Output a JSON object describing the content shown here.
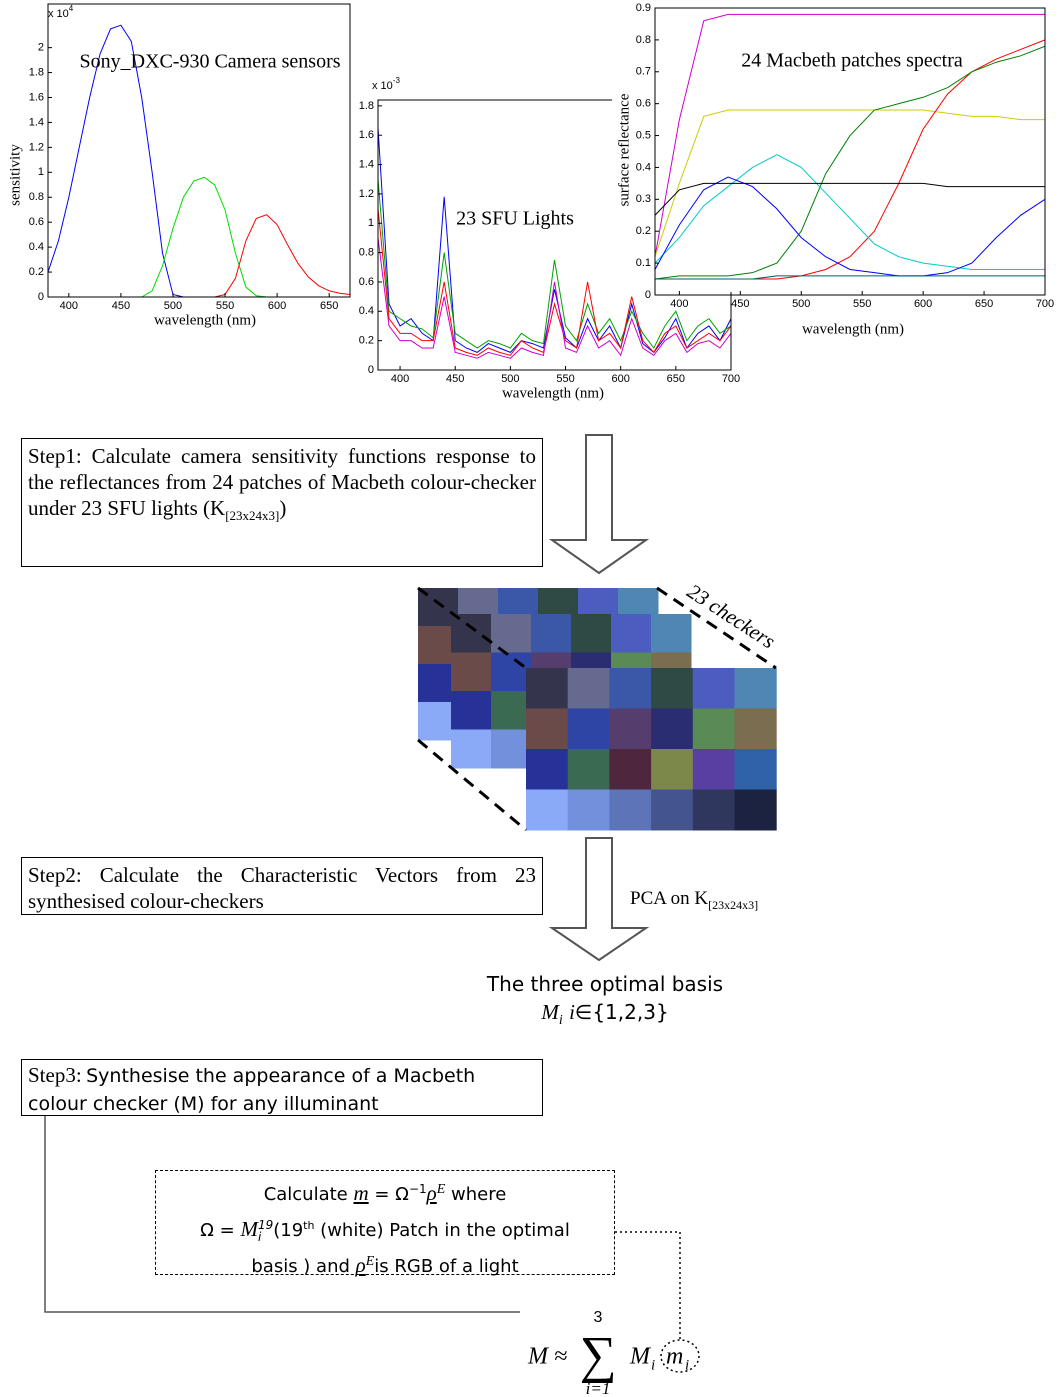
{
  "chart_data": [
    {
      "type": "line",
      "title": "Sony_DXC-930 Camera sensors",
      "y_scale_label": {
        "base": "x 10",
        "power": "4"
      },
      "xlabel": "wavelength (nm)",
      "ylabel": "sensitivity",
      "x": [
        380,
        390,
        400,
        410,
        420,
        430,
        440,
        450,
        460,
        470,
        480,
        490,
        500,
        510,
        520,
        530,
        540,
        550,
        560,
        570,
        580,
        590,
        600,
        610,
        620,
        630,
        640,
        650,
        660,
        670
      ],
      "series": [
        {
          "color": "#0000ff",
          "values": [
            0.2,
            0.45,
            0.8,
            1.2,
            1.6,
            1.95,
            2.15,
            2.18,
            2.05,
            1.6,
            1.0,
            0.35,
            0.02,
            0,
            0,
            0,
            0,
            0,
            0,
            0,
            0,
            0,
            0,
            0,
            0,
            0,
            0,
            0,
            0,
            0
          ]
        },
        {
          "color": "#00dd00",
          "values": [
            0,
            0,
            0,
            0,
            0,
            0,
            0,
            0,
            0,
            0,
            0.05,
            0.25,
            0.55,
            0.8,
            0.93,
            0.96,
            0.9,
            0.7,
            0.35,
            0.08,
            0.01,
            0,
            0,
            0,
            0,
            0,
            0,
            0,
            0,
            0
          ]
        },
        {
          "color": "#ff0000",
          "values": [
            0,
            0,
            0,
            0,
            0,
            0,
            0,
            0,
            0,
            0,
            0,
            0,
            0,
            0,
            0,
            0,
            0,
            0.02,
            0.15,
            0.45,
            0.63,
            0.66,
            0.58,
            0.42,
            0.27,
            0.16,
            0.09,
            0.05,
            0.03,
            0.02
          ]
        }
      ],
      "xlim": [
        380,
        670
      ],
      "ylim": [
        0,
        2.35
      ],
      "xticks": [
        400,
        450,
        500,
        550,
        600,
        650
      ],
      "yticks": [
        0,
        0.2,
        0.4,
        0.6,
        0.8,
        1,
        1.2,
        1.4,
        1.6,
        1.8,
        2
      ]
    },
    {
      "type": "line",
      "title": "23 SFU Lights",
      "y_scale_label": {
        "base": "x 10",
        "power": "-3"
      },
      "xlabel": "wavelength (nm)",
      "x": [
        380,
        390,
        400,
        410,
        420,
        430,
        440,
        450,
        460,
        470,
        480,
        490,
        500,
        510,
        520,
        530,
        540,
        550,
        560,
        570,
        580,
        590,
        600,
        610,
        620,
        630,
        640,
        650,
        660,
        670,
        680,
        690,
        700
      ],
      "series": [
        {
          "color": "#0000ff",
          "values": [
            1.65,
            0.45,
            0.3,
            0.35,
            0.25,
            0.2,
            1.18,
            0.2,
            0.15,
            0.12,
            0.18,
            0.15,
            0.12,
            0.2,
            0.18,
            0.15,
            0.55,
            0.22,
            0.15,
            0.35,
            0.2,
            0.3,
            0.15,
            0.45,
            0.18,
            0.12,
            0.22,
            0.35,
            0.15,
            0.25,
            0.3,
            0.2,
            0.35
          ]
        },
        {
          "color": "#00a000",
          "values": [
            1.3,
            0.4,
            0.35,
            0.3,
            0.28,
            0.22,
            0.8,
            0.25,
            0.2,
            0.15,
            0.2,
            0.18,
            0.15,
            0.25,
            0.2,
            0.18,
            0.75,
            0.3,
            0.2,
            0.45,
            0.25,
            0.35,
            0.2,
            0.4,
            0.25,
            0.15,
            0.3,
            0.4,
            0.2,
            0.3,
            0.35,
            0.25,
            0.3
          ]
        },
        {
          "color": "#ff0000",
          "values": [
            1.1,
            0.35,
            0.25,
            0.25,
            0.2,
            0.2,
            0.6,
            0.15,
            0.12,
            0.1,
            0.15,
            0.12,
            0.1,
            0.2,
            0.15,
            0.12,
            0.45,
            0.2,
            0.15,
            0.6,
            0.2,
            0.25,
            0.15,
            0.5,
            0.2,
            0.12,
            0.25,
            0.3,
            0.15,
            0.2,
            0.25,
            0.2,
            0.3
          ]
        },
        {
          "color": "#cc00cc",
          "values": [
            0.9,
            0.3,
            0.2,
            0.2,
            0.15,
            0.15,
            0.5,
            0.12,
            0.1,
            0.08,
            0.12,
            0.1,
            0.08,
            0.15,
            0.12,
            0.1,
            0.6,
            0.15,
            0.12,
            0.3,
            0.15,
            0.2,
            0.1,
            0.35,
            0.15,
            0.1,
            0.2,
            0.25,
            0.12,
            0.18,
            0.2,
            0.15,
            0.25
          ]
        }
      ],
      "xlim": [
        380,
        700
      ],
      "ylim": [
        0,
        1.84
      ],
      "xticks": [
        400,
        450,
        500,
        550,
        600,
        650,
        700
      ],
      "yticks": [
        0,
        0.2,
        0.4,
        0.6,
        0.8,
        1,
        1.2,
        1.4,
        1.6,
        1.8
      ]
    },
    {
      "type": "line",
      "title": "24 Macbeth patches spectra",
      "xlabel": "wavelength (nm)",
      "ylabel": "surface reflectance",
      "x": [
        380,
        400,
        420,
        440,
        460,
        480,
        500,
        520,
        540,
        560,
        580,
        600,
        620,
        640,
        660,
        680,
        700
      ],
      "series": [
        {
          "color": "#cc00cc",
          "values": [
            0.12,
            0.55,
            0.86,
            0.88,
            0.88,
            0.88,
            0.88,
            0.88,
            0.88,
            0.88,
            0.88,
            0.88,
            0.88,
            0.88,
            0.88,
            0.88,
            0.88
          ]
        },
        {
          "color": "#cccc00",
          "values": [
            0.12,
            0.35,
            0.56,
            0.58,
            0.58,
            0.58,
            0.58,
            0.58,
            0.58,
            0.58,
            0.58,
            0.58,
            0.57,
            0.56,
            0.56,
            0.55,
            0.55
          ]
        },
        {
          "color": "#ff0000",
          "values": [
            0.05,
            0.05,
            0.05,
            0.05,
            0.05,
            0.05,
            0.06,
            0.08,
            0.12,
            0.2,
            0.35,
            0.52,
            0.63,
            0.7,
            0.74,
            0.77,
            0.8
          ]
        },
        {
          "color": "#008000",
          "values": [
            0.05,
            0.06,
            0.06,
            0.06,
            0.07,
            0.1,
            0.2,
            0.38,
            0.5,
            0.58,
            0.6,
            0.62,
            0.65,
            0.7,
            0.73,
            0.75,
            0.78
          ]
        },
        {
          "color": "#00cccc",
          "values": [
            0.1,
            0.18,
            0.28,
            0.34,
            0.4,
            0.44,
            0.4,
            0.32,
            0.24,
            0.16,
            0.12,
            0.1,
            0.09,
            0.08,
            0.08,
            0.08,
            0.08
          ]
        },
        {
          "color": "#0000ff",
          "values": [
            0.08,
            0.22,
            0.33,
            0.37,
            0.34,
            0.27,
            0.18,
            0.12,
            0.08,
            0.07,
            0.06,
            0.06,
            0.07,
            0.1,
            0.18,
            0.25,
            0.3
          ]
        },
        {
          "color": "#000000",
          "values": [
            0.25,
            0.33,
            0.35,
            0.35,
            0.35,
            0.35,
            0.35,
            0.35,
            0.35,
            0.35,
            0.35,
            0.35,
            0.34,
            0.34,
            0.34,
            0.34,
            0.34
          ]
        },
        {
          "color": "#006060",
          "values": [
            0.05,
            0.05,
            0.05,
            0.05,
            0.05,
            0.06,
            0.06,
            0.06,
            0.06,
            0.06,
            0.06,
            0.06,
            0.06,
            0.06,
            0.06,
            0.06,
            0.06
          ]
        }
      ],
      "xlim": [
        380,
        700
      ],
      "ylim": [
        0,
        0.9
      ],
      "xticks": [
        400,
        450,
        500,
        550,
        600,
        650,
        700
      ],
      "yticks": [
        0,
        0.1,
        0.2,
        0.3,
        0.4,
        0.5,
        0.6,
        0.7,
        0.8,
        0.9
      ]
    }
  ],
  "steps": [
    {
      "text": "Step1: Calculate camera sensitivity functions response to the reflectances from 24 patches of Macbeth colour-checker under 23 SFU lights (K",
      "subscript": "[23x24x3]",
      "close": ")"
    },
    {
      "text": "Step2: Calculate the Characteristic Vectors  from 23 synthesised colour-checkers"
    },
    {
      "label": "Step3:",
      "text": "Synthesise the appearance of a Macbeth colour checker (M) for any illuminant"
    }
  ],
  "checker": {
    "label": "23 checkers",
    "colors": [
      "#35344d",
      "#676a8f",
      "#3b57a8",
      "#2f4a44",
      "#4c5dbf",
      "#4f87b4",
      "#6a4b4a",
      "#2e45a5",
      "#553d6e",
      "#2a2d72",
      "#5a8a56",
      "#7b6e50",
      "#263298",
      "#3a6a52",
      "#4e263e",
      "#7c884a",
      "#5a3fa3",
      "#2f62a8",
      "#8aaaf7",
      "#7390dd",
      "#5e74b8",
      "#44558e",
      "#2f375f",
      "#1c2340"
    ]
  },
  "pca": {
    "text": "PCA on K",
    "subscript": "[23x24x3]"
  },
  "basis": {
    "line1": "The three optimal basis",
    "line2": [
      "M",
      "i",
      "i",
      "∈{1,2,3}"
    ]
  },
  "calc_box": {
    "lines": [
      [
        "Calculate ",
        "m",
        " =  Ω",
        "−1",
        "ρ",
        "E",
        " where"
      ],
      [
        "Ω = ",
        "M",
        "i",
        "19",
        "(19",
        "th",
        " (white) Patch in the optimal"
      ],
      [
        "basis ) and ",
        "ρ",
        "E",
        "is RGB of a light"
      ]
    ]
  },
  "formula": {
    "parts": [
      "M ≈",
      "∑",
      "3",
      "i=1",
      "M",
      "i",
      "m",
      "i"
    ]
  }
}
